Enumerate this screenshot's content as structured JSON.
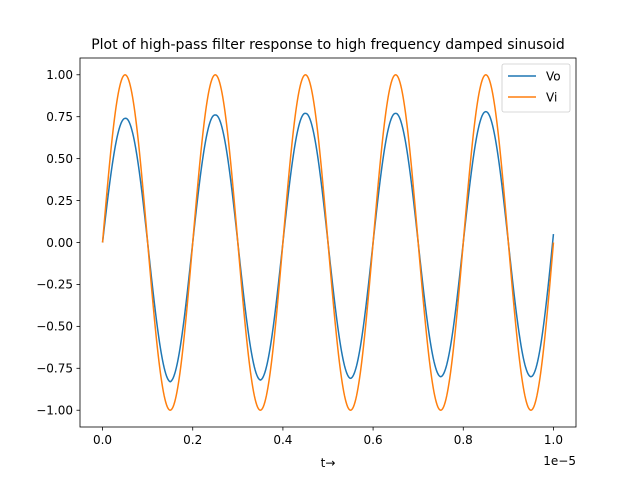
{
  "chart_data": {
    "type": "line",
    "title": "Plot of high-pass filter response to high frequency damped sinusoid",
    "xlabel": "t→",
    "ylabel": "",
    "x_offset_text": "1e−5",
    "xlim": [
      -0.05,
      1.05
    ],
    "ylim": [
      -1.1,
      1.1
    ],
    "x_ticks": [
      0.0,
      0.2,
      0.4,
      0.6,
      0.8,
      1.0
    ],
    "x_tick_labels": [
      "0.0",
      "0.2",
      "0.4",
      "0.6",
      "0.8",
      "1.0"
    ],
    "y_ticks": [
      -1.0,
      -0.75,
      -0.5,
      -0.25,
      0.0,
      0.25,
      0.5,
      0.75,
      1.0
    ],
    "y_tick_labels": [
      "−1.00",
      "−0.75",
      "−0.50",
      "−0.25",
      "0.00",
      "0.25",
      "0.50",
      "0.75",
      "1.00"
    ],
    "grid": false,
    "legend_position": "top-right",
    "series": [
      {
        "name": "Vo",
        "color": "#1f77b4",
        "x": [
          0.0,
          0.05,
          0.15,
          0.25,
          0.35,
          0.45,
          0.55,
          0.65,
          0.75,
          0.85,
          0.95,
          1.0
        ],
        "y": [
          0.0,
          0.74,
          -0.83,
          0.76,
          -0.82,
          0.77,
          -0.81,
          0.77,
          -0.8,
          0.78,
          -0.8,
          0.05
        ]
      },
      {
        "name": "Vi",
        "color": "#ff7f0e",
        "x": [
          0.0,
          0.05,
          0.15,
          0.25,
          0.35,
          0.45,
          0.55,
          0.65,
          0.75,
          0.85,
          0.95,
          1.0
        ],
        "y": [
          0.0,
          1.0,
          -1.0,
          1.0,
          -1.0,
          1.0,
          -1.0,
          1.0,
          -1.0,
          1.0,
          -1.0,
          0.0
        ]
      }
    ]
  }
}
